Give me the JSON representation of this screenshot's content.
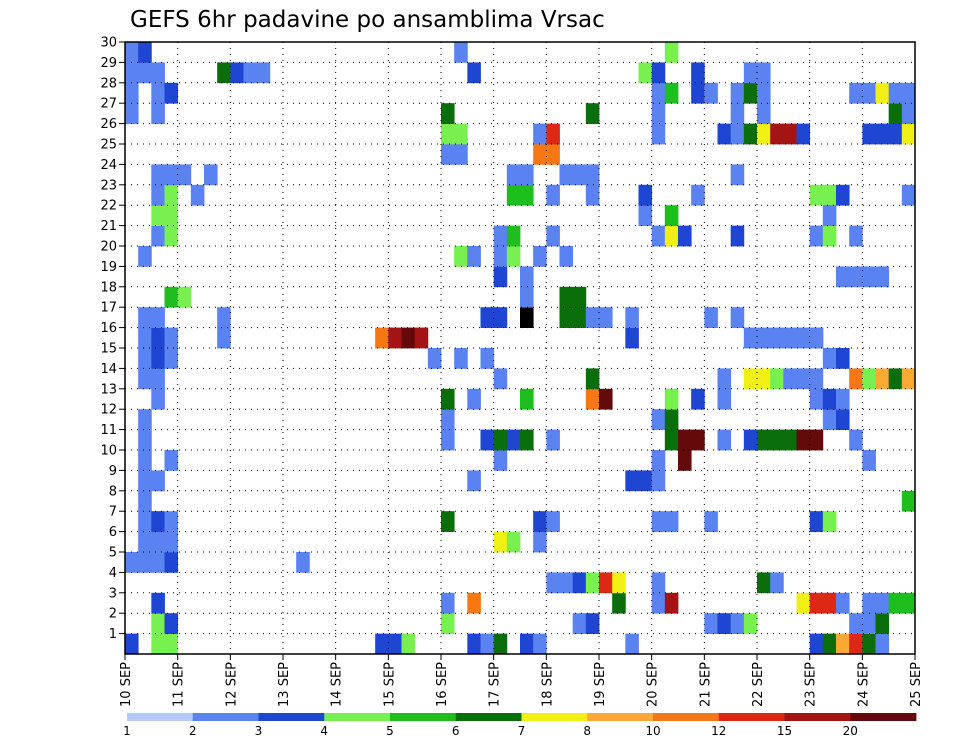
{
  "chart_data": {
    "type": "heatmap",
    "title": "GEFS 6hr padavine po ansamblima Vrsac",
    "xlabel": "",
    "ylabel": "",
    "x_ticks": [
      "10 SEP",
      "11 SEP",
      "12 SEP",
      "13 SEP",
      "14 SEP",
      "15 SEP",
      "16 SEP",
      "17 SEP",
      "18 SEP",
      "19 SEP",
      "20 SEP",
      "21 SEP",
      "22 SEP",
      "23 SEP",
      "24 SEP",
      "25 SEP"
    ],
    "y_ticks": [
      "1",
      "2",
      "3",
      "4",
      "5",
      "6",
      "7",
      "8",
      "9",
      "10",
      "11",
      "12",
      "13",
      "14",
      "15",
      "16",
      "17",
      "18",
      "19",
      "20",
      "21",
      "22",
      "23",
      "24",
      "25",
      "26",
      "27",
      "28",
      "29",
      "30"
    ],
    "xlim": [
      0,
      60
    ],
    "ylim": [
      0,
      30
    ],
    "time_step_hours": 6,
    "grid": "dotted",
    "color_scale": {
      "levels": [
        "1",
        "2",
        "3",
        "4",
        "5",
        "6",
        "7",
        "8",
        "10",
        "12",
        "15",
        "20"
      ],
      "colors": [
        "#b4c8fa",
        "#5a82f0",
        "#1e46d2",
        "#78f050",
        "#1ebe1e",
        "#0a6e0a",
        "#f0f014",
        "#faaa32",
        "#f57814",
        "#dc2814",
        "#a51414",
        "#640a0a"
      ]
    },
    "cells": [
      [
        0,
        0,
        2
      ],
      [
        0,
        4,
        1
      ],
      [
        0,
        26,
        1
      ],
      [
        0,
        27,
        1
      ],
      [
        0,
        28,
        1
      ],
      [
        0,
        29,
        1
      ],
      [
        1,
        4,
        1
      ],
      [
        1,
        5,
        1
      ],
      [
        1,
        6,
        1
      ],
      [
        1,
        7,
        1
      ],
      [
        1,
        8,
        1
      ],
      [
        1,
        9,
        1
      ],
      [
        1,
        10,
        1
      ],
      [
        1,
        11,
        1
      ],
      [
        1,
        13,
        1
      ],
      [
        1,
        14,
        1
      ],
      [
        1,
        15,
        1
      ],
      [
        1,
        16,
        1
      ],
      [
        1,
        19,
        1
      ],
      [
        1,
        28,
        1
      ],
      [
        1,
        29,
        2
      ],
      [
        2,
        0,
        3
      ],
      [
        2,
        1,
        3
      ],
      [
        2,
        2,
        2
      ],
      [
        2,
        4,
        1
      ],
      [
        2,
        5,
        1
      ],
      [
        2,
        6,
        2
      ],
      [
        2,
        8,
        1
      ],
      [
        2,
        12,
        1
      ],
      [
        2,
        13,
        1
      ],
      [
        2,
        14,
        2
      ],
      [
        2,
        15,
        2
      ],
      [
        2,
        16,
        1
      ],
      [
        2,
        20,
        1
      ],
      [
        2,
        21,
        3
      ],
      [
        2,
        22,
        1
      ],
      [
        2,
        23,
        1
      ],
      [
        2,
        26,
        1
      ],
      [
        2,
        27,
        1
      ],
      [
        2,
        28,
        1
      ],
      [
        3,
        0,
        3
      ],
      [
        3,
        1,
        2
      ],
      [
        3,
        4,
        2
      ],
      [
        3,
        5,
        1
      ],
      [
        3,
        6,
        1
      ],
      [
        3,
        9,
        1
      ],
      [
        3,
        14,
        1
      ],
      [
        3,
        15,
        1
      ],
      [
        3,
        17,
        4
      ],
      [
        3,
        20,
        3
      ],
      [
        3,
        21,
        3
      ],
      [
        3,
        22,
        3
      ],
      [
        3,
        23,
        1
      ],
      [
        3,
        27,
        2
      ],
      [
        4,
        17,
        3
      ],
      [
        4,
        23,
        1
      ],
      [
        5,
        22,
        1
      ],
      [
        6,
        23,
        1
      ],
      [
        7,
        15,
        1
      ],
      [
        7,
        16,
        1
      ],
      [
        7,
        28,
        5
      ],
      [
        8,
        28,
        2
      ],
      [
        9,
        28,
        1
      ],
      [
        10,
        28,
        1
      ],
      [
        13,
        4,
        1
      ],
      [
        19,
        0,
        2
      ],
      [
        19,
        15,
        8
      ],
      [
        20,
        0,
        2
      ],
      [
        20,
        15,
        10
      ],
      [
        21,
        0,
        3
      ],
      [
        21,
        15,
        11
      ],
      [
        22,
        15,
        10
      ],
      [
        23,
        14,
        1
      ],
      [
        24,
        1,
        3
      ],
      [
        24,
        2,
        1
      ],
      [
        24,
        6,
        5
      ],
      [
        24,
        10,
        1
      ],
      [
        24,
        11,
        1
      ],
      [
        24,
        12,
        5
      ],
      [
        24,
        24,
        1
      ],
      [
        24,
        25,
        3
      ],
      [
        24,
        26,
        5
      ],
      [
        25,
        14,
        1
      ],
      [
        25,
        19,
        3
      ],
      [
        25,
        24,
        1
      ],
      [
        25,
        25,
        3
      ],
      [
        25,
        29,
        1
      ],
      [
        26,
        0,
        2
      ],
      [
        26,
        2,
        8
      ],
      [
        26,
        8,
        1
      ],
      [
        26,
        12,
        1
      ],
      [
        26,
        19,
        1
      ],
      [
        26,
        28,
        2
      ],
      [
        27,
        10,
        2
      ],
      [
        27,
        0,
        1
      ],
      [
        27,
        14,
        1
      ],
      [
        27,
        16,
        2
      ],
      [
        28,
        0,
        5
      ],
      [
        28,
        5,
        6
      ],
      [
        28,
        9,
        1
      ],
      [
        28,
        10,
        5
      ],
      [
        28,
        13,
        1
      ],
      [
        28,
        16,
        2
      ],
      [
        28,
        18,
        2
      ],
      [
        28,
        19,
        1
      ],
      [
        28,
        20,
        1
      ],
      [
        29,
        5,
        3
      ],
      [
        29,
        10,
        2
      ],
      [
        29,
        19,
        3
      ],
      [
        29,
        20,
        4
      ],
      [
        29,
        22,
        4
      ],
      [
        29,
        23,
        1
      ],
      [
        30,
        0,
        2
      ],
      [
        30,
        10,
        5
      ],
      [
        30,
        12,
        4
      ],
      [
        30,
        16,
        12
      ],
      [
        30,
        17,
        1
      ],
      [
        30,
        18,
        1
      ],
      [
        30,
        22,
        4
      ],
      [
        30,
        23,
        1
      ],
      [
        31,
        0,
        1
      ],
      [
        31,
        5,
        1
      ],
      [
        31,
        6,
        2
      ],
      [
        31,
        19,
        1
      ],
      [
        31,
        24,
        8
      ],
      [
        31,
        25,
        1
      ],
      [
        32,
        3,
        1
      ],
      [
        32,
        6,
        1
      ],
      [
        32,
        10,
        1
      ],
      [
        32,
        20,
        1
      ],
      [
        32,
        22,
        1
      ],
      [
        32,
        24,
        8
      ],
      [
        32,
        25,
        9
      ],
      [
        33,
        3,
        1
      ],
      [
        33,
        16,
        5
      ],
      [
        33,
        17,
        5
      ],
      [
        33,
        19,
        1
      ],
      [
        33,
        23,
        1
      ],
      [
        34,
        1,
        1
      ],
      [
        34,
        3,
        2
      ],
      [
        34,
        16,
        5
      ],
      [
        34,
        17,
        5
      ],
      [
        34,
        23,
        1
      ],
      [
        35,
        1,
        2
      ],
      [
        35,
        3,
        3
      ],
      [
        35,
        12,
        8
      ],
      [
        35,
        13,
        5
      ],
      [
        35,
        16,
        1
      ],
      [
        35,
        22,
        1
      ],
      [
        35,
        23,
        1
      ],
      [
        35,
        26,
        5
      ],
      [
        36,
        3,
        9
      ],
      [
        36,
        12,
        11
      ],
      [
        36,
        16,
        1
      ],
      [
        37,
        2,
        5
      ],
      [
        37,
        3,
        6
      ],
      [
        38,
        0,
        1
      ],
      [
        38,
        15,
        2
      ],
      [
        38,
        8,
        2
      ],
      [
        38,
        16,
        1
      ],
      [
        39,
        8,
        2
      ],
      [
        39,
        21,
        1
      ],
      [
        39,
        22,
        2
      ],
      [
        39,
        28,
        3
      ],
      [
        40,
        2,
        1
      ],
      [
        40,
        3,
        1
      ],
      [
        40,
        6,
        1
      ],
      [
        40,
        8,
        1
      ],
      [
        40,
        9,
        1
      ],
      [
        40,
        11,
        1
      ],
      [
        40,
        20,
        1
      ],
      [
        40,
        25,
        1
      ],
      [
        40,
        26,
        1
      ],
      [
        40,
        27,
        1
      ],
      [
        40,
        28,
        2
      ],
      [
        41,
        2,
        10
      ],
      [
        41,
        6,
        1
      ],
      [
        41,
        10,
        5
      ],
      [
        41,
        11,
        5
      ],
      [
        41,
        20,
        6
      ],
      [
        41,
        12,
        3
      ],
      [
        41,
        21,
        4
      ],
      [
        41,
        27,
        4
      ],
      [
        41,
        29,
        3
      ],
      [
        42,
        9,
        11
      ],
      [
        42,
        10,
        11
      ],
      [
        42,
        20,
        2
      ],
      [
        43,
        10,
        11
      ],
      [
        43,
        12,
        2
      ],
      [
        43,
        22,
        1
      ],
      [
        43,
        27,
        2
      ],
      [
        43,
        28,
        2
      ],
      [
        44,
        1,
        1
      ],
      [
        44,
        6,
        1
      ],
      [
        44,
        16,
        1
      ],
      [
        44,
        27,
        1
      ],
      [
        45,
        1,
        2
      ],
      [
        45,
        10,
        1
      ],
      [
        45,
        12,
        1
      ],
      [
        45,
        13,
        1
      ],
      [
        45,
        25,
        2
      ],
      [
        46,
        1,
        1
      ],
      [
        46,
        16,
        1
      ],
      [
        46,
        20,
        2
      ],
      [
        46,
        23,
        1
      ],
      [
        46,
        25,
        1
      ],
      [
        46,
        26,
        1
      ],
      [
        46,
        27,
        1
      ],
      [
        47,
        1,
        3
      ],
      [
        47,
        10,
        2
      ],
      [
        47,
        13,
        6
      ],
      [
        47,
        15,
        1
      ],
      [
        47,
        25,
        5
      ],
      [
        47,
        27,
        5
      ],
      [
        47,
        28,
        1
      ],
      [
        48,
        3,
        5
      ],
      [
        48,
        10,
        5
      ],
      [
        48,
        13,
        6
      ],
      [
        48,
        15,
        1
      ],
      [
        48,
        25,
        6
      ],
      [
        48,
        26,
        1
      ],
      [
        48,
        27,
        1
      ],
      [
        48,
        28,
        1
      ],
      [
        49,
        3,
        1
      ],
      [
        49,
        10,
        5
      ],
      [
        49,
        13,
        3
      ],
      [
        49,
        15,
        1
      ],
      [
        49,
        25,
        10
      ],
      [
        50,
        10,
        5
      ],
      [
        50,
        13,
        1
      ],
      [
        50,
        15,
        1
      ],
      [
        50,
        25,
        10
      ],
      [
        51,
        2,
        6
      ],
      [
        51,
        10,
        11
      ],
      [
        51,
        13,
        1
      ],
      [
        51,
        15,
        1
      ],
      [
        51,
        25,
        2
      ],
      [
        52,
        0,
        2
      ],
      [
        52,
        2,
        9
      ],
      [
        52,
        6,
        2
      ],
      [
        52,
        10,
        11
      ],
      [
        52,
        12,
        1
      ],
      [
        52,
        13,
        1
      ],
      [
        52,
        15,
        1
      ],
      [
        52,
        20,
        1
      ],
      [
        52,
        22,
        3
      ],
      [
        52,
        15,
        1
      ],
      [
        53,
        0,
        5
      ],
      [
        53,
        2,
        9
      ],
      [
        53,
        6,
        3
      ],
      [
        53,
        11,
        1
      ],
      [
        53,
        12,
        2
      ],
      [
        53,
        20,
        3
      ],
      [
        53,
        22,
        3
      ],
      [
        53,
        14,
        1
      ],
      [
        53,
        21,
        1
      ],
      [
        54,
        0,
        7
      ],
      [
        54,
        2,
        1
      ],
      [
        54,
        11,
        2
      ],
      [
        54,
        12,
        1
      ],
      [
        54,
        14,
        2
      ],
      [
        54,
        18,
        1
      ],
      [
        54,
        22,
        2
      ],
      [
        55,
        0,
        9
      ],
      [
        55,
        1,
        1
      ],
      [
        55,
        10,
        1
      ],
      [
        55,
        13,
        8
      ],
      [
        55,
        20,
        1
      ],
      [
        55,
        18,
        1
      ],
      [
        55,
        27,
        1
      ],
      [
        56,
        0,
        5
      ],
      [
        56,
        1,
        1
      ],
      [
        56,
        2,
        1
      ],
      [
        56,
        9,
        1
      ],
      [
        56,
        13,
        3
      ],
      [
        56,
        18,
        1
      ],
      [
        56,
        25,
        2
      ],
      [
        56,
        27,
        1
      ],
      [
        57,
        0,
        1
      ],
      [
        57,
        1,
        5
      ],
      [
        57,
        2,
        1
      ],
      [
        57,
        13,
        7
      ],
      [
        57,
        18,
        1
      ],
      [
        57,
        25,
        2
      ],
      [
        57,
        27,
        6
      ],
      [
        58,
        2,
        4
      ],
      [
        58,
        13,
        5
      ],
      [
        58,
        25,
        2
      ],
      [
        58,
        26,
        5
      ],
      [
        58,
        27,
        1
      ],
      [
        59,
        2,
        4
      ],
      [
        59,
        13,
        7
      ],
      [
        59,
        25,
        6
      ],
      [
        59,
        26,
        1
      ],
      [
        59,
        27,
        1
      ],
      [
        59,
        7,
        4
      ],
      [
        59,
        22,
        1
      ]
    ]
  }
}
